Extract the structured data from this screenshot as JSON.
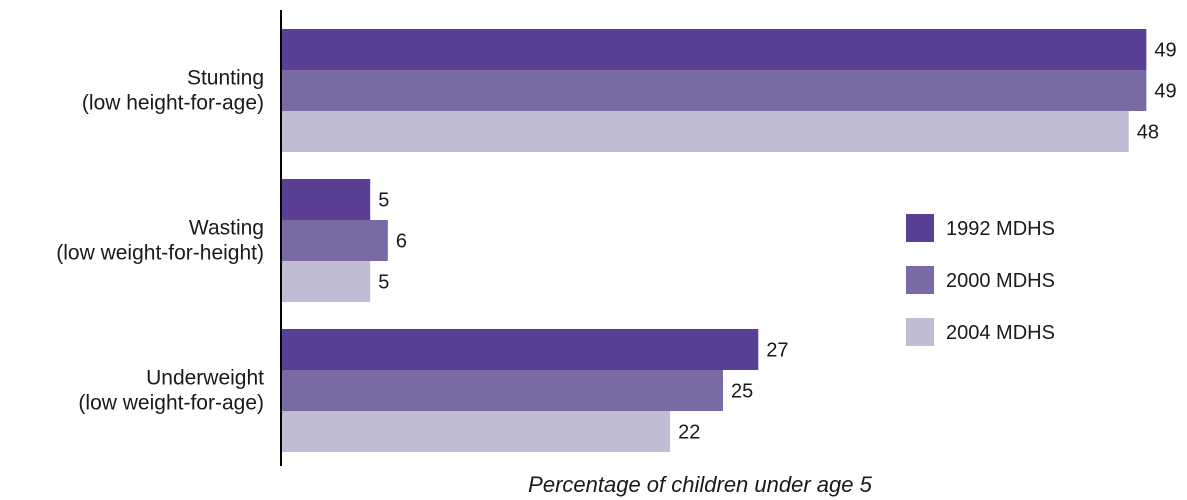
{
  "chart_data": {
    "type": "bar",
    "orientation": "horizontal",
    "categories": [
      [
        "Stunting",
        "(low height-for-age)"
      ],
      [
        "Wasting",
        "(low weight-for-height)"
      ],
      [
        "Underweight",
        "(low weight-for-age)"
      ]
    ],
    "series": [
      {
        "name": "1992 MDHS",
        "color": "#5b3f95",
        "values": [
          49,
          5,
          27
        ]
      },
      {
        "name": "2000 MDHS",
        "color": "#7a6aa3",
        "values": [
          49,
          6,
          25
        ]
      },
      {
        "name": "2004 MDHS",
        "color": "#bfbcd3",
        "values": [
          48,
          5,
          22
        ]
      }
    ],
    "xlabel": "Percentage of children under age 5",
    "xlim": [
      0,
      49
    ],
    "grid": false,
    "legend_position": "right"
  }
}
